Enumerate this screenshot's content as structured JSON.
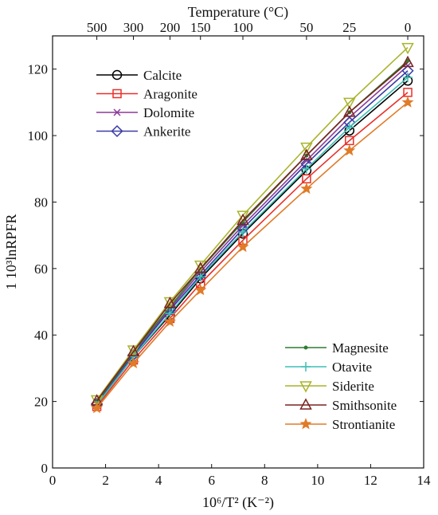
{
  "chart_data": {
    "type": "line",
    "x": [
      1.67,
      3.05,
      4.43,
      5.58,
      7.18,
      9.58,
      11.2,
      13.4
    ],
    "top_axis": {
      "label": "Temperature (°C)",
      "ticks": [
        {
          "label": "500",
          "x": 1.67
        },
        {
          "label": "300",
          "x": 3.05
        },
        {
          "label": "200",
          "x": 4.43
        },
        {
          "label": "150",
          "x": 5.58
        },
        {
          "label": "100",
          "x": 7.18
        },
        {
          "label": "50",
          "x": 9.58
        },
        {
          "label": "25",
          "x": 11.2
        },
        {
          "label": "0",
          "x": 13.4
        }
      ]
    },
    "xlabel": "10⁶/T² (K⁻²)",
    "ylabel": "1 10³lnRPFR",
    "xlim": [
      0,
      14
    ],
    "ylim": [
      0,
      130
    ],
    "xticks": [
      0,
      2,
      4,
      6,
      8,
      10,
      12,
      14
    ],
    "yticks": [
      0,
      20,
      40,
      60,
      80,
      100,
      120
    ],
    "grid": false,
    "legends": [
      {
        "placement": "top-left",
        "series": [
          "Calcite",
          "Aragonite",
          "Dolomite",
          "Ankerite"
        ]
      },
      {
        "placement": "bottom-right",
        "series": [
          "Magnesite",
          "Otavite",
          "Siderite",
          "Smithsonite",
          "Strontianite"
        ]
      }
    ],
    "series": [
      {
        "name": "Calcite",
        "color": "#000000",
        "marker": "circle",
        "values": [
          19.0,
          33.5,
          46.0,
          57.0,
          70.5,
          89.5,
          101.5,
          116.5
        ]
      },
      {
        "name": "Aragonite",
        "color": "#e8302a",
        "marker": "square",
        "values": [
          18.5,
          32.5,
          45.0,
          55.5,
          68.5,
          87.0,
          98.5,
          113.0
        ]
      },
      {
        "name": "Dolomite",
        "color": "#8b3a96",
        "marker": "x",
        "values": [
          19.5,
          34.5,
          48.0,
          59.0,
          73.0,
          92.5,
          105.5,
          121.0
        ]
      },
      {
        "name": "Ankerite",
        "color": "#3a3aa8",
        "marker": "diamond",
        "values": [
          19.3,
          34.0,
          47.5,
          58.0,
          72.0,
          91.5,
          104.0,
          119.5
        ]
      },
      {
        "name": "Magnesite",
        "color": "#2e7d32",
        "marker": "dot",
        "values": [
          19.8,
          34.8,
          48.5,
          59.8,
          74.0,
          94.0,
          107.0,
          122.5
        ]
      },
      {
        "name": "Otavite",
        "color": "#3fbfb5",
        "marker": "plus",
        "values": [
          19.0,
          33.5,
          46.5,
          57.5,
          71.0,
          90.0,
          102.5,
          117.5
        ]
      },
      {
        "name": "Siderite",
        "color": "#a9b42c",
        "marker": "triangle-down",
        "values": [
          20.5,
          35.5,
          50.0,
          61.0,
          76.0,
          96.5,
          110.0,
          126.5
        ]
      },
      {
        "name": "Smithsonite",
        "color": "#7a2420",
        "marker": "triangle-up",
        "values": [
          20.2,
          35.0,
          49.5,
          60.0,
          74.5,
          94.0,
          107.0,
          122.0
        ]
      },
      {
        "name": "Strontianite",
        "color": "#e07b28",
        "marker": "star",
        "values": [
          18.0,
          31.5,
          44.0,
          53.5,
          66.5,
          84.0,
          95.5,
          110.0
        ]
      }
    ]
  }
}
